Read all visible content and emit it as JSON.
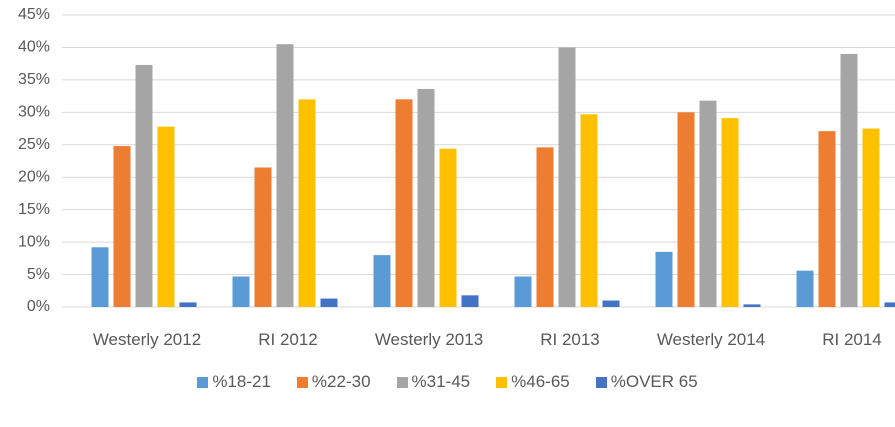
{
  "chart_data": {
    "type": "bar",
    "categories": [
      "Westerly 2012",
      "RI 2012",
      "Westerly 2013",
      "RI 2013",
      "Westerly 2014",
      "RI 2014"
    ],
    "series": [
      {
        "name": "%18-21",
        "color": "#5b9bd5",
        "values": [
          9.2,
          4.7,
          8.0,
          4.7,
          8.5,
          5.6
        ]
      },
      {
        "name": "%22-30",
        "color": "#ed7d31",
        "values": [
          24.8,
          21.5,
          32.0,
          24.6,
          30.0,
          27.1
        ]
      },
      {
        "name": "%31-45",
        "color": "#a5a5a5",
        "values": [
          37.3,
          40.5,
          33.6,
          40.0,
          31.8,
          39.0
        ]
      },
      {
        "name": "%46-65",
        "color": "#ffc000",
        "values": [
          27.8,
          32.0,
          24.4,
          29.7,
          29.1,
          27.5
        ]
      },
      {
        "name": "%OVER 65",
        "color": "#4472c4",
        "values": [
          0.7,
          1.3,
          1.8,
          1.0,
          0.4,
          0.7
        ]
      }
    ],
    "ylim": [
      0,
      45
    ],
    "yticks": [
      {
        "value": 0,
        "label": "0%"
      },
      {
        "value": 5,
        "label": "5%"
      },
      {
        "value": 10,
        "label": "10%"
      },
      {
        "value": 15,
        "label": "15%"
      },
      {
        "value": 20,
        "label": "20%"
      },
      {
        "value": 25,
        "label": "25%"
      },
      {
        "value": 30,
        "label": "30%"
      },
      {
        "value": 35,
        "label": "35%"
      },
      {
        "value": 40,
        "label": "40%"
      },
      {
        "value": 45,
        "label": "45%"
      }
    ],
    "grid": true,
    "legend": "bottom"
  }
}
